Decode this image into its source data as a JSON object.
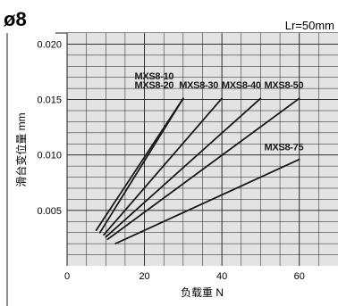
{
  "header": {
    "title": "ø8",
    "lr_note": "Lr=50mm"
  },
  "chart_data": {
    "type": "line",
    "xlabel": "负载重 N",
    "ylabel": "滑台变位量 mm",
    "xlim": [
      0,
      70
    ],
    "ylim": [
      0,
      0.021
    ],
    "x_ticks": [
      0,
      20,
      40,
      60
    ],
    "x_tick_labels": [
      "0",
      "20",
      "40",
      "60"
    ],
    "y_ticks": [
      0.005,
      0.01,
      0.015,
      0.02
    ],
    "y_tick_labels": [
      "0.005",
      "0.010",
      "0.015",
      "0.020"
    ],
    "grid": true,
    "plot_background": "#e3e3e3",
    "line_color": "#1a1a1a",
    "series": [
      {
        "name": "MXS8-10",
        "x": [
          7.5,
          30
        ],
        "y": [
          0.0032,
          0.0151
        ]
      },
      {
        "name": "MXS8-20",
        "x": [
          8.5,
          30
        ],
        "y": [
          0.003,
          0.0151
        ]
      },
      {
        "name": "MXS8-30",
        "x": [
          9.5,
          40
        ],
        "y": [
          0.0028,
          0.0151
        ]
      },
      {
        "name": "MXS8-40",
        "x": [
          10,
          50
        ],
        "y": [
          0.0026,
          0.0151
        ]
      },
      {
        "name": "MXS8-50",
        "x": [
          10.5,
          60
        ],
        "y": [
          0.0024,
          0.0151
        ]
      },
      {
        "name": "MXS8-75",
        "x": [
          12.5,
          60
        ],
        "y": [
          0.002,
          0.0096
        ]
      }
    ],
    "labels": [
      {
        "text": "MXS8-10",
        "x": 22.5,
        "y": 0.0168
      },
      {
        "text": "MXS8-20",
        "x": 22.5,
        "y": 0.016
      },
      {
        "text": "MXS8-30",
        "x": 34,
        "y": 0.016
      },
      {
        "text": "MXS8-40",
        "x": 45,
        "y": 0.016
      },
      {
        "text": "MXS8-50",
        "x": 56,
        "y": 0.016
      },
      {
        "text": "MXS8-75",
        "x": 56,
        "y": 0.0104
      }
    ]
  }
}
